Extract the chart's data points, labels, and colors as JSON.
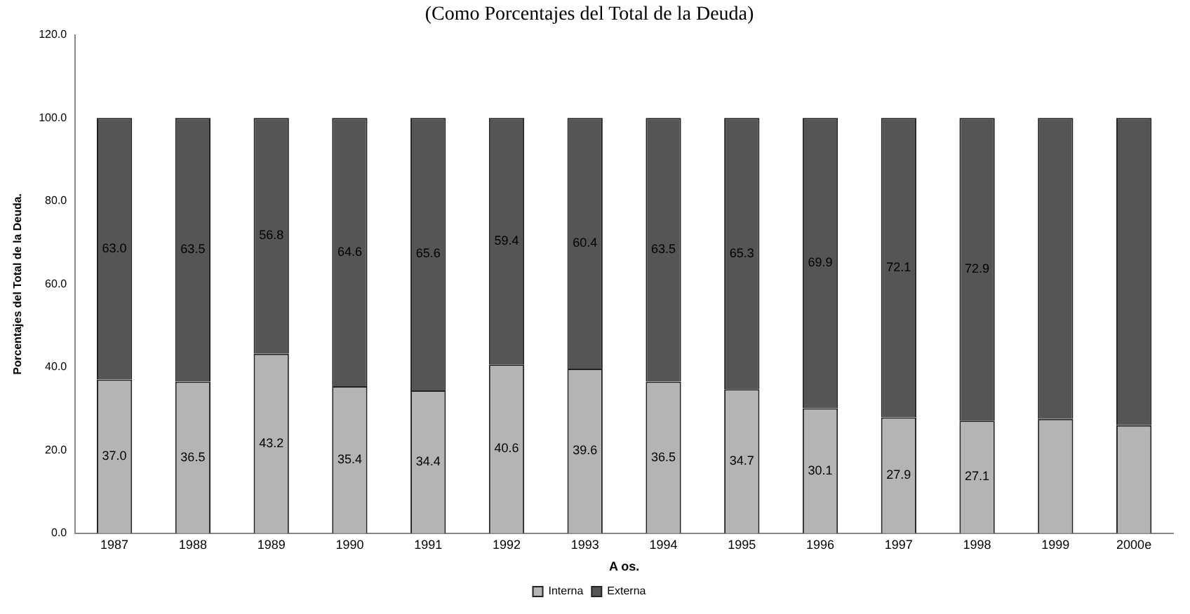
{
  "chart_data": {
    "type": "bar",
    "subtitle": "(Como Porcentajes del Total de la Deuda)",
    "xlabel": "A os.",
    "ylabel": "Porcentajes del Total de la Deuda.",
    "categories": [
      "1987",
      "1988",
      "1989",
      "1990",
      "1991",
      "1992",
      "1993",
      "1994",
      "1995",
      "1996",
      "1997",
      "1998",
      "1999",
      "2000e"
    ],
    "stacked": true,
    "legend": "bottom",
    "grid": false,
    "ylim": [
      0,
      120
    ],
    "yticks": [
      {
        "value": 0,
        "label": "0.0"
      },
      {
        "value": 20,
        "label": "20.0"
      },
      {
        "value": 40,
        "label": "40.0"
      },
      {
        "value": 60,
        "label": "60.0"
      },
      {
        "value": 80,
        "label": "80.0"
      },
      {
        "value": 100,
        "label": "100.0"
      },
      {
        "value": 120,
        "label": "120.0"
      }
    ],
    "series": [
      {
        "name": "Interna",
        "color": "#b4b4b4",
        "values": [
          37.0,
          36.5,
          43.2,
          35.4,
          34.4,
          40.6,
          39.6,
          36.5,
          34.7,
          30.1,
          27.9,
          27.1,
          27.5,
          26.0
        ],
        "value_labels": [
          "37.0",
          "36.5",
          "43.2",
          "35.4",
          "34.4",
          "40.6",
          "39.6",
          "36.5",
          "34.7",
          "30.1",
          "27.9",
          "27.1",
          null,
          null
        ]
      },
      {
        "name": "Externa",
        "color": "#555555",
        "values": [
          63.0,
          63.5,
          56.8,
          64.6,
          65.6,
          59.4,
          60.4,
          63.5,
          65.3,
          69.9,
          72.1,
          72.9,
          72.5,
          74.0
        ],
        "value_labels": [
          "63.0",
          "63.5",
          "56.8",
          "64.6",
          "65.6",
          "59.4",
          "60.4",
          "63.5",
          "65.3",
          "69.9",
          "72.1",
          "72.9",
          null,
          null
        ]
      }
    ]
  }
}
